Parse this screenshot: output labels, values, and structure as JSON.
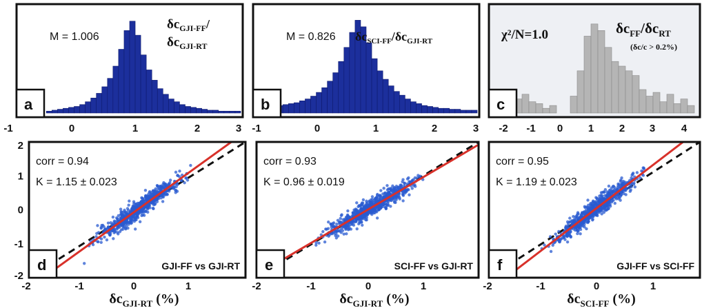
{
  "colors": {
    "hist_fill": "#1c2f9c",
    "hist_gray": "#b5b5b5",
    "gray_bg": "#eef0f4",
    "scatter": "#2a5bd0",
    "fit_line": "#d8312a",
    "frame": "#111111"
  },
  "chart_data": [
    {
      "type": "histogram",
      "panel": "a",
      "annotation": "M = 1.006",
      "ratio_label": {
        "num_main": "δc",
        "num_sub": "GJI-FF",
        "slash": "/",
        "den_main": "δc",
        "den_sub": "GJI-RT"
      },
      "xlim": [
        -1,
        3
      ],
      "xticks": [
        "-1",
        "0",
        "1",
        "2",
        "3"
      ],
      "bin_centers": [
        -0.45,
        -0.35,
        -0.25,
        -0.15,
        -0.05,
        0.05,
        0.15,
        0.25,
        0.35,
        0.45,
        0.55,
        0.65,
        0.75,
        0.85,
        0.95,
        1.05,
        1.15,
        1.25,
        1.35,
        1.45,
        1.55,
        1.65,
        1.75,
        1.85,
        1.95,
        2.05,
        2.15,
        2.25,
        2.35,
        2.45,
        2.55,
        2.65,
        2.75,
        2.85,
        2.95
      ],
      "values": [
        0.02,
        0.03,
        0.04,
        0.05,
        0.06,
        0.07,
        0.09,
        0.12,
        0.16,
        0.21,
        0.28,
        0.37,
        0.5,
        0.68,
        0.88,
        0.98,
        0.83,
        0.62,
        0.46,
        0.35,
        0.26,
        0.2,
        0.15,
        0.12,
        0.09,
        0.07,
        0.06,
        0.05,
        0.04,
        0.03,
        0.03,
        0.02,
        0.02,
        0.02,
        0.02
      ]
    },
    {
      "type": "histogram",
      "panel": "b",
      "annotation": "M = 0.826",
      "ratio_label": {
        "num_main": "δc",
        "num_sub": "SCI-FF",
        "slash": "/",
        "den_main": "δc",
        "den_sub": "GJI-RT"
      },
      "xlim": [
        -1,
        3
      ],
      "xticks": [
        "-1",
        "0",
        "1",
        "2",
        "3"
      ],
      "bin_centers": [
        -0.95,
        -0.85,
        -0.75,
        -0.65,
        -0.55,
        -0.45,
        -0.35,
        -0.25,
        -0.15,
        -0.05,
        0.05,
        0.15,
        0.25,
        0.35,
        0.45,
        0.55,
        0.65,
        0.75,
        0.85,
        0.95,
        1.05,
        1.15,
        1.25,
        1.35,
        1.45,
        1.55,
        1.65,
        1.75,
        1.85,
        1.95,
        2.05,
        2.15,
        2.25,
        2.35,
        2.45,
        2.55,
        2.65,
        2.75,
        2.85,
        2.95
      ],
      "values": [
        0.05,
        0.06,
        0.06,
        0.07,
        0.08,
        0.09,
        0.1,
        0.11,
        0.13,
        0.15,
        0.18,
        0.22,
        0.27,
        0.34,
        0.43,
        0.55,
        0.7,
        0.86,
        0.99,
        0.92,
        0.75,
        0.58,
        0.45,
        0.36,
        0.29,
        0.23,
        0.19,
        0.15,
        0.12,
        0.1,
        0.08,
        0.07,
        0.06,
        0.05,
        0.05,
        0.04,
        0.04,
        0.03,
        0.03,
        0.03
      ]
    },
    {
      "type": "histogram",
      "panel": "c",
      "annotation": "χ²/N=1.0",
      "ratio_label": {
        "num_main": "δc",
        "num_sub": "FF",
        "slash": "/",
        "den_main": "δc",
        "den_sub": "RT"
      },
      "note": "(δc/c > 0.2%)",
      "xlim": [
        -2,
        4
      ],
      "xticks": [
        "-2",
        "-1",
        "0",
        "1",
        "2",
        "3",
        "4"
      ],
      "bin_centers": [
        -1.6,
        -1.4,
        -1.2,
        -1.0,
        -0.8,
        -0.6,
        -0.4,
        -0.2,
        0.0,
        0.2,
        0.4,
        0.6,
        0.8,
        1.0,
        1.2,
        1.4,
        1.6,
        1.8,
        2.0,
        2.2,
        2.4,
        2.6,
        2.8,
        3.0,
        3.2,
        3.4,
        3.6,
        3.8
      ],
      "values": [
        0.05,
        0.18,
        0.15,
        0.2,
        0.12,
        0.1,
        0.05,
        0.08,
        0.0,
        0.0,
        0.18,
        0.45,
        0.82,
        0.95,
        0.88,
        0.7,
        0.55,
        0.5,
        0.45,
        0.4,
        0.25,
        0.18,
        0.22,
        0.12,
        0.2,
        0.1,
        0.15,
        0.08
      ]
    },
    {
      "type": "scatter",
      "panel": "d",
      "corr_text": "corr = 0.94",
      "k_text": "K = 1.15 ± 0.023",
      "slope": 1.15,
      "pair_label": "GJI-FF vs GJI-RT",
      "xlabel": {
        "main": "δc",
        "sub": "GJI-RT",
        "unit": " (%)"
      },
      "xlim": [
        -2,
        2
      ],
      "ylim": [
        -2,
        2
      ],
      "xticks": [
        "-2",
        "-1",
        "0",
        "1"
      ],
      "yticks": [
        "2",
        "1",
        "0",
        "-1",
        "-2"
      ]
    },
    {
      "type": "scatter",
      "panel": "e",
      "corr_text": "corr = 0.93",
      "k_text": "K = 0.96 ± 0.019",
      "slope": 0.96,
      "pair_label": "SCI-FF vs GJI-RT",
      "xlabel": {
        "main": "δc",
        "sub": "GJI-RT",
        "unit": " (%)"
      },
      "xlim": [
        -2,
        2
      ],
      "ylim": [
        -2,
        2
      ],
      "xticks": [
        "-2",
        "-1",
        "0",
        "1"
      ],
      "yticks": []
    },
    {
      "type": "scatter",
      "panel": "f",
      "corr_text": "corr = 0.95",
      "k_text": "K = 1.19 ± 0.023",
      "slope": 1.19,
      "pair_label": "GJI-FF vs SCI-FF",
      "xlabel": {
        "main": "δc",
        "sub": "SCI-FF",
        "unit": " (%)"
      },
      "xlim": [
        -2,
        2
      ],
      "ylim": [
        -2,
        2
      ],
      "xticks": [
        "-2",
        "-1",
        "0",
        "1"
      ],
      "yticks": []
    }
  ]
}
